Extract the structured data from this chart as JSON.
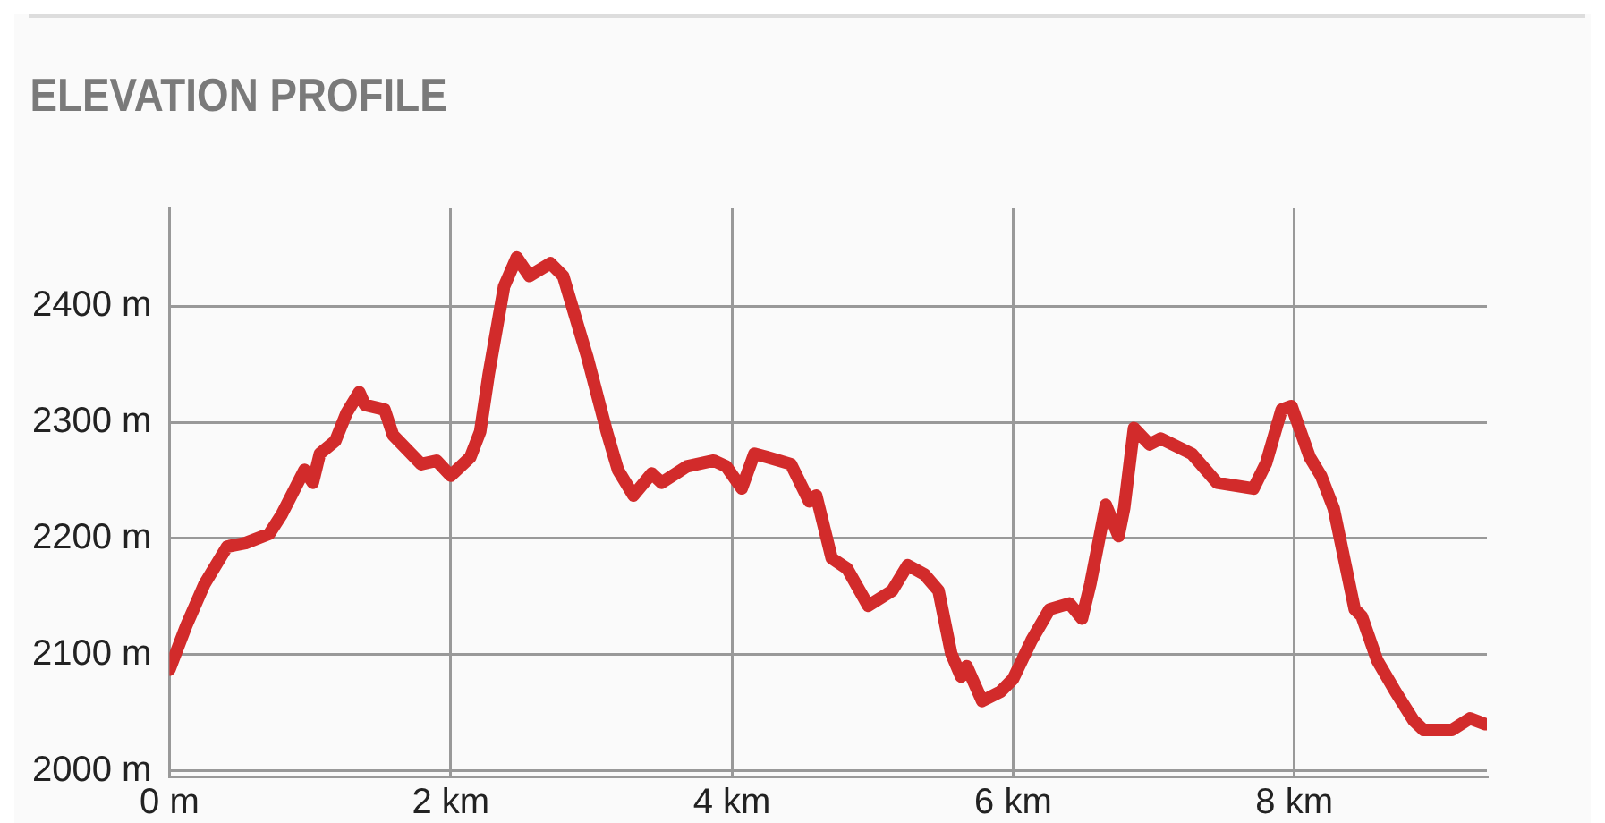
{
  "chart_data": {
    "type": "line",
    "title": "ELEVATION PROFILE",
    "x": [
      0,
      0.12,
      0.25,
      0.41,
      0.54,
      0.71,
      0.8,
      0.96,
      1.02,
      1.07,
      1.18,
      1.26,
      1.35,
      1.39,
      1.53,
      1.59,
      1.79,
      1.9,
      2.0,
      2.14,
      2.21,
      2.27,
      2.38,
      2.47,
      2.56,
      2.71,
      2.8,
      2.97,
      3.11,
      3.19,
      3.3,
      3.43,
      3.5,
      3.68,
      3.87,
      3.96,
      4.07,
      4.16,
      4.25,
      4.42,
      4.55,
      4.6,
      4.71,
      4.82,
      4.97,
      5.14,
      5.25,
      5.37,
      5.47,
      5.56,
      5.63,
      5.67,
      5.78,
      5.91,
      6.0,
      6.13,
      6.26,
      6.4,
      6.49,
      6.55,
      6.66,
      6.75,
      6.79,
      6.86,
      6.97,
      7.05,
      7.27,
      7.45,
      7.71,
      7.8,
      7.91,
      7.98,
      8.11,
      8.19,
      8.28,
      8.43,
      8.48,
      8.59,
      8.72,
      8.85,
      8.92,
      9.12,
      9.25,
      9.36
    ],
    "series": [
      {
        "color": "#d22b2b",
        "values": [
          2087,
          2125,
          2161,
          2193,
          2196,
          2204,
          2221,
          2259,
          2248,
          2273,
          2284,
          2308,
          2326,
          2315,
          2311,
          2289,
          2264,
          2267,
          2254,
          2270,
          2292,
          2341,
          2417,
          2442,
          2426,
          2437,
          2426,
          2357,
          2292,
          2259,
          2237,
          2256,
          2248,
          2262,
          2267,
          2262,
          2243,
          2273,
          2270,
          2264,
          2232,
          2237,
          2183,
          2174,
          2142,
          2155,
          2177,
          2169,
          2155,
          2101,
          2081,
          2090,
          2060,
          2068,
          2079,
          2112,
          2139,
          2144,
          2131,
          2161,
          2229,
          2202,
          2226,
          2295,
          2281,
          2286,
          2273,
          2248,
          2243,
          2265,
          2311,
          2314,
          2270,
          2254,
          2226,
          2139,
          2133,
          2095,
          2068,
          2043,
          2035,
          2035,
          2045,
          2040
        ]
      }
    ],
    "xlim": [
      0,
      9.37
    ],
    "xticks": [
      {
        "value": 0,
        "label": "0 m"
      },
      {
        "value": 2,
        "label": "2 km"
      },
      {
        "value": 4,
        "label": "4 km"
      },
      {
        "value": 6,
        "label": "6 km"
      },
      {
        "value": 8,
        "label": "8 km"
      }
    ],
    "ylim": [
      1995,
      2485
    ],
    "yticks": [
      {
        "value": 2000,
        "label": "2000 m"
      },
      {
        "value": 2100,
        "label": "2100 m"
      },
      {
        "value": 2200,
        "label": "2200 m"
      },
      {
        "value": 2300,
        "label": "2300 m"
      },
      {
        "value": 2400,
        "label": "2400 m"
      }
    ],
    "grid": true,
    "legend": false,
    "marker": "none",
    "line_style": "solid"
  }
}
